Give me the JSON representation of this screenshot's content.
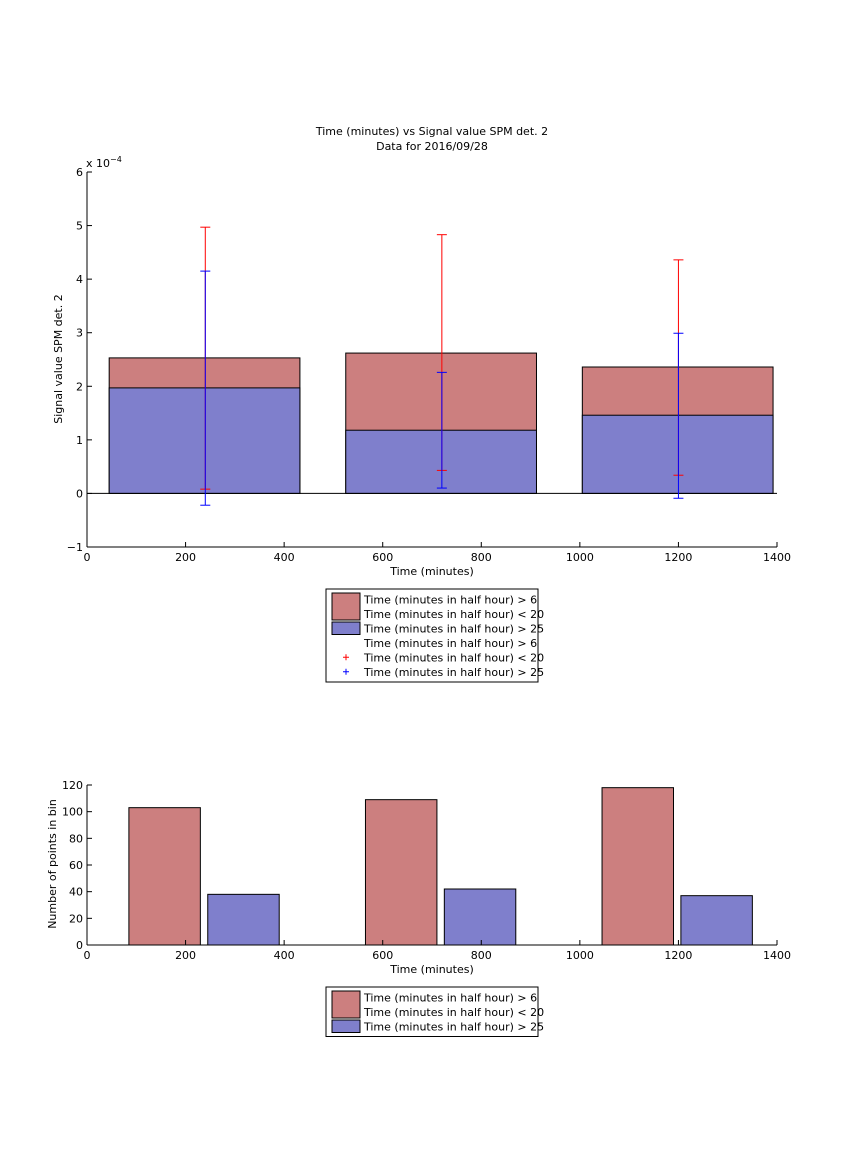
{
  "chart_data": [
    {
      "type": "bar",
      "title": "Time (minutes) vs Signal value SPM det. 2",
      "subtitle": "Data for 2016/09/28",
      "xlabel": "Time (minutes)",
      "ylabel": "Signal value SPM det. 2",
      "exponent_label": "x 10",
      "exponent_power": "−4",
      "xlim": [
        0,
        1400
      ],
      "ylim": [
        -1,
        6
      ],
      "xticks": [
        "0",
        "200",
        "400",
        "600",
        "800",
        "1000",
        "1200",
        "1400"
      ],
      "yticks": [
        "−1",
        "0",
        "1",
        "2",
        "3",
        "4",
        "5",
        "6"
      ],
      "grid": false,
      "legend_position": "below",
      "bars": [
        {
          "x": 240,
          "x_start": 45,
          "x_end": 432,
          "total": 2.53,
          "lower": 1.97
        },
        {
          "x": 720,
          "x_start": 525,
          "x_end": 912,
          "total": 2.62,
          "lower": 1.18
        },
        {
          "x": 1200,
          "x_start": 1005,
          "x_end": 1392,
          "total": 2.36,
          "lower": 1.46
        }
      ],
      "errorbars": [
        {
          "name": "Time (minutes in half hour) > 6 Time (minutes in half hour) < 20",
          "color": "#ff0000",
          "points": [
            {
              "x": 240,
              "low": 0.08,
              "high": 4.97
            },
            {
              "x": 720,
              "low": 0.43,
              "high": 4.83
            },
            {
              "x": 1200,
              "low": 0.34,
              "high": 4.36
            }
          ]
        },
        {
          "name": "Time (minutes in half hour) > 25",
          "color": "#0000ff",
          "points": [
            {
              "x": 240,
              "low": -0.22,
              "high": 4.15
            },
            {
              "x": 720,
              "low": 0.1,
              "high": 2.26
            },
            {
              "x": 1200,
              "low": -0.09,
              "high": 2.99
            }
          ]
        }
      ],
      "colors": {
        "red_bar": "#cc7f7f",
        "blue_bar": "#7f7fcc",
        "red_err": "#ff0000",
        "blue_err": "#0000ff"
      },
      "legend": [
        {
          "line1": "Time (minutes in half hour) > 6",
          "line2": "Time (minutes in half hour) < 20",
          "kind": "patch",
          "color": "#cc7f7f"
        },
        {
          "line1": "Time (minutes in half hour) > 25",
          "kind": "patch",
          "color": "#7f7fcc"
        },
        {
          "line1": "Time (minutes in half hour) > 6",
          "line2": "Time (minutes in half hour) < 20",
          "kind": "plus",
          "color": "#ff0000"
        },
        {
          "line1": "Time (minutes in half hour) > 25",
          "kind": "plus",
          "color": "#0000ff"
        }
      ]
    },
    {
      "type": "bar",
      "xlabel": "Time (minutes)",
      "ylabel": "Number of points in bin",
      "xlim": [
        0,
        1400
      ],
      "ylim": [
        0,
        120
      ],
      "xticks": [
        "0",
        "200",
        "400",
        "600",
        "800",
        "1000",
        "1200",
        "1400"
      ],
      "yticks": [
        "0",
        "20",
        "40",
        "60",
        "80",
        "100",
        "120"
      ],
      "grid": false,
      "legend_position": "below",
      "series": [
        {
          "name": "Time (minutes in half hour) > 6 Time (minutes in half hour) < 20",
          "color": "#cc7f7f",
          "bars": [
            {
              "x_start": 85,
              "x_end": 230,
              "value": 103
            },
            {
              "x_start": 565,
              "x_end": 710,
              "value": 109
            },
            {
              "x_start": 1045,
              "x_end": 1190,
              "value": 118
            }
          ]
        },
        {
          "name": "Time (minutes in half hour) > 25",
          "color": "#7f7fcc",
          "bars": [
            {
              "x_start": 245,
              "x_end": 390,
              "value": 38
            },
            {
              "x_start": 725,
              "x_end": 870,
              "value": 42
            },
            {
              "x_start": 1205,
              "x_end": 1350,
              "value": 37
            }
          ]
        }
      ],
      "legend": [
        {
          "line1": "Time (minutes in half hour) > 6",
          "line2": "Time (minutes in half hour) < 20",
          "kind": "patch",
          "color": "#cc7f7f"
        },
        {
          "line1": "Time (minutes in half hour) > 25",
          "kind": "patch",
          "color": "#7f7fcc"
        }
      ]
    }
  ]
}
